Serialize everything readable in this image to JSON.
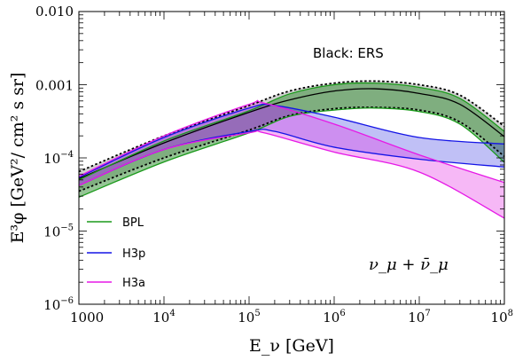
{
  "chart_data": {
    "type": "area",
    "xlabel": "E_ν [GeV]",
    "ylabel": "E³φ [GeV²/ cm² s sr]",
    "xscale": "log",
    "yscale": "log",
    "xlim": [
      1000,
      100000000
    ],
    "ylim": [
      1e-06,
      0.01
    ],
    "x_ticks": [
      {
        "base": "1000",
        "exp": ""
      },
      {
        "base": "10",
        "exp": "4"
      },
      {
        "base": "10",
        "exp": "5"
      },
      {
        "base": "10",
        "exp": "6"
      },
      {
        "base": "10",
        "exp": "7"
      },
      {
        "base": "10",
        "exp": "8"
      }
    ],
    "y_ticks": [
      {
        "base": "10",
        "exp": "−6"
      },
      {
        "base": "10",
        "exp": "−5"
      },
      {
        "base": "10",
        "exp": "−4"
      },
      {
        "base": "0.001",
        "exp": ""
      },
      {
        "base": "0.010",
        "exp": ""
      }
    ],
    "annotations": {
      "ers_note": "Black: ERS",
      "flavor": "ν_μ + ν̄_μ"
    },
    "legend": {
      "placement": "bottom-left",
      "entries": [
        "BPL",
        "H3p",
        "H3a"
      ]
    },
    "series": [
      {
        "name": "BPL",
        "color": "#1a9a1a",
        "fill": "#2e8b2e",
        "fill_opacity": 0.5,
        "x": [
          1000,
          10000,
          100000,
          300000,
          1000000,
          3000000,
          10000000,
          30000000,
          100000000
        ],
        "upper": [
          5e-05,
          0.00017,
          0.00044,
          0.00075,
          0.001,
          0.00105,
          0.00092,
          0.00065,
          0.00023
        ],
        "lower": [
          2.9e-05,
          8.8e-05,
          0.00022,
          0.00037,
          0.00045,
          0.00048,
          0.00043,
          0.00029,
          8.7e-05
        ]
      },
      {
        "name": "H3p",
        "color": "#1414e6",
        "fill": "#4a4ae6",
        "fill_opacity": 0.35,
        "x": [
          1000,
          10000,
          100000,
          200000,
          1000000,
          10000000,
          100000000
        ],
        "upper": [
          5.4e-05,
          0.00019,
          0.00048,
          0.00052,
          0.00036,
          0.00019,
          0.000155
        ],
        "lower": [
          4.2e-05,
          0.00013,
          0.00023,
          0.00023,
          0.00014,
          9.6e-05,
          7.5e-05
        ]
      },
      {
        "name": "H3a",
        "color": "#e619e6",
        "fill": "#e633e6",
        "fill_opacity": 0.35,
        "x": [
          1000,
          10000,
          100000,
          150000,
          1000000,
          10000000,
          100000000
        ],
        "upper": [
          5.6e-05,
          0.0002,
          0.00054,
          0.00056,
          0.00029,
          0.00011,
          4.6e-05
        ],
        "lower": [
          4.2e-05,
          0.00013,
          0.00022,
          0.00022,
          0.00012,
          6.4e-05,
          1.5e-05
        ]
      },
      {
        "name": "ERS",
        "color": "#000000",
        "fill": "#9a9a9a",
        "fill_opacity": 0.45,
        "x": [
          1000,
          10000,
          100000,
          300000,
          1000000,
          3000000,
          10000000,
          30000000,
          100000000
        ],
        "upper": [
          6.5e-05,
          0.0002,
          0.00052,
          0.00082,
          0.00105,
          0.00112,
          0.001,
          0.00072,
          0.00027
        ],
        "central": [
          5.2e-05,
          0.00016,
          0.00042,
          0.00062,
          0.00082,
          0.00088,
          0.00076,
          0.00054,
          0.000195
        ],
        "lower": [
          3.5e-05,
          0.0001,
          0.00024,
          0.00038,
          0.00047,
          0.00049,
          0.00045,
          0.00031,
          0.000105
        ]
      }
    ]
  }
}
